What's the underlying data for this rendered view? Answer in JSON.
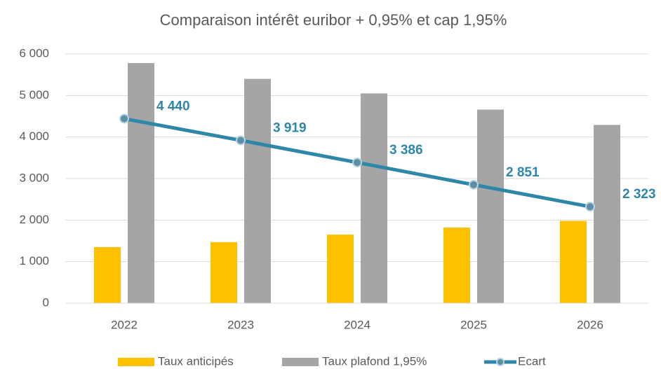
{
  "chart_data": {
    "type": "bar",
    "title": "Comparaison intérêt euribor + 0,95% et cap 1,95%",
    "categories": [
      "2022",
      "2023",
      "2024",
      "2025",
      "2026"
    ],
    "series": [
      {
        "name": "Taux anticipés",
        "type": "bar",
        "color": "#ffc000",
        "values": [
          1350,
          1470,
          1650,
          1820,
          1980
        ]
      },
      {
        "name": "Taux plafond 1,95%",
        "type": "bar",
        "color": "#a5a5a5",
        "values": [
          5780,
          5400,
          5050,
          4660,
          4290
        ]
      },
      {
        "name": "Ecart",
        "type": "line",
        "color": "#2e86a8",
        "values": [
          4440,
          3919,
          3386,
          2851,
          2323
        ],
        "value_labels": [
          "4 440",
          "3 919",
          "3 386",
          "2 851",
          "2 323"
        ]
      }
    ],
    "ylim": [
      0,
      6000
    ],
    "yticks": [
      0,
      {
        "value": 1000,
        "label": "1 000"
      },
      {
        "value": 2000,
        "label": "2 000"
      },
      {
        "value": 3000,
        "label": "3 000"
      },
      {
        "value": 4000,
        "label": "4 000"
      },
      {
        "value": 5000,
        "label": "5 000"
      },
      {
        "value": 6000,
        "label": "6 000"
      }
    ],
    "grid": true,
    "legend": "bottom"
  }
}
